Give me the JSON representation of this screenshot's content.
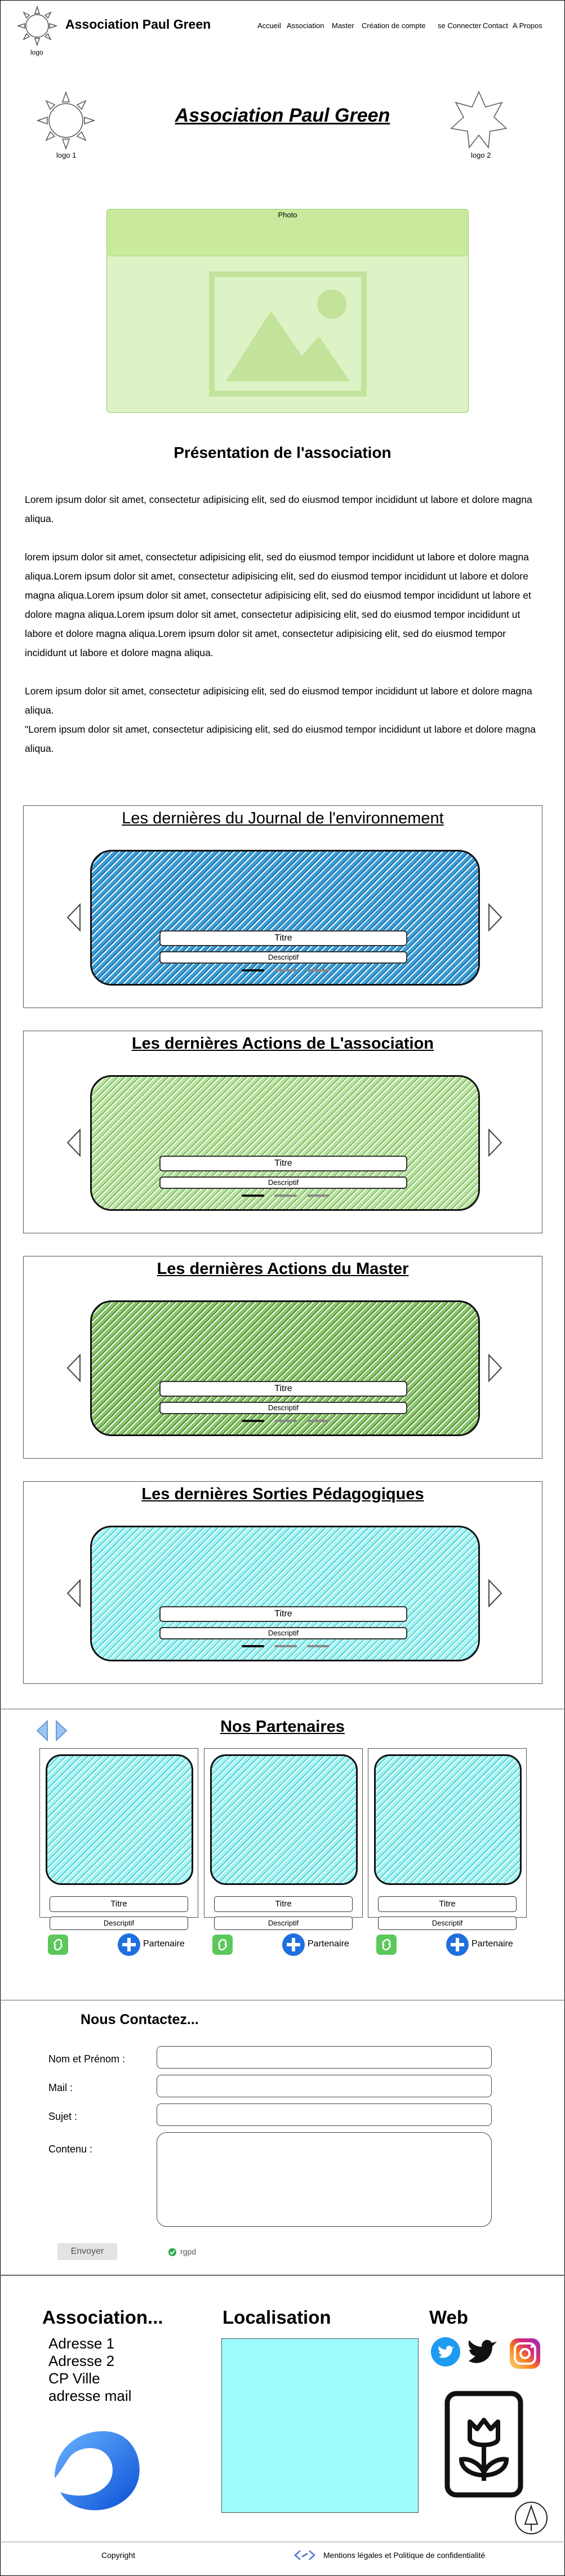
{
  "header": {
    "site_title": "Association Paul Green",
    "logo_label": "logo",
    "nav": [
      "Accueil",
      "Association",
      "Master",
      "Création de compte",
      "se Connecter",
      "Contact",
      "A Propos"
    ]
  },
  "hero": {
    "title": "Association Paul Green",
    "logo1_label": "logo 1",
    "logo2_label": "logo 2",
    "photo_label": "Photo"
  },
  "presentation": {
    "heading": "Présentation de l'association",
    "p1": "Lorem ipsum dolor sit amet, consectetur adipisicing elit, sed do eiusmod tempor incididunt ut labore et dolore magna aliqua.",
    "p2": "lorem ipsum dolor sit amet, consectetur adipisicing elit, sed do eiusmod tempor incididunt ut labore et dolore magna aliqua.Lorem ipsum dolor sit amet, consectetur adipisicing elit, sed do eiusmod tempor incididunt ut labore et dolore magna aliqua.Lorem ipsum dolor sit amet, consectetur adipisicing elit, sed do eiusmod tempor incididunt ut labore et dolore magna aliqua.Lorem ipsum dolor sit amet, consectetur adipisicing elit, sed do eiusmod tempor incididunt ut labore et dolore magna aliqua.Lorem ipsum dolor sit amet, consectetur adipisicing elit, sed do eiusmod tempor incididunt ut labore et dolore magna aliqua.",
    "p3": "Lorem ipsum dolor sit amet, consectetur adipisicing elit, sed do eiusmod tempor incididunt ut labore et dolore magna aliqua.",
    "p4": "\"Lorem ipsum dolor sit amet, consectetur adipisicing elit, sed do eiusmod tempor incididunt ut labore et dolore magna aliqua."
  },
  "carousels": [
    {
      "title": "Les dernières du Journal de l'environnement",
      "titre": "Titre",
      "descriptif": "Descriptif",
      "color": "#3a9fd8",
      "dark": "#1f6fa8"
    },
    {
      "title": "Les dernières Actions de L'association",
      "titre": "Titre",
      "descriptif": "Descriptif",
      "color": "#b9e2a0",
      "dark": "#7cbf5a"
    },
    {
      "title": "Les dernières Actions du Master",
      "titre": "Titre",
      "descriptif": "Descriptif",
      "color": "#8cc66a",
      "dark": "#4f8f34"
    },
    {
      "title": "Les dernières Sorties Pédagogiques",
      "titre": "Titre",
      "descriptif": "Descriptif",
      "color": "#a6f3f3",
      "dark": "#4fd4d4"
    }
  ],
  "partners": {
    "heading": "Nos Partenaires",
    "cards": [
      {
        "titre": "Titre",
        "descriptif": "Descriptif",
        "button": "Partenaire"
      },
      {
        "titre": "Titre",
        "descriptif": "Descriptif",
        "button": "Partenaire"
      },
      {
        "titre": "Titre",
        "descriptif": "Descriptif",
        "button": "Partenaire"
      }
    ]
  },
  "contact": {
    "heading": "Nous Contactez...",
    "name_label": "Nom et Prénom :",
    "mail_label": "Mail :",
    "subject_label": "Sujet :",
    "content_label": "Contenu :",
    "send_button": "Envoyer",
    "rgpd_label": "rgpd"
  },
  "footer": {
    "assoc_title": "Association...",
    "address": [
      "Adresse 1",
      "Adresse 2",
      "CP Ville",
      "adresse mail"
    ],
    "localisation_title": "Localisation",
    "web_title": "Web",
    "copyright": "Copyright",
    "legal": "Mentions légales et Politique de confidentialité"
  },
  "colors": {
    "photo_bg": "#ddf3c6",
    "photo_bar": "#c9ea9c",
    "map_bg": "#9cfbfb",
    "twitter": "#1d9bf0",
    "partner_btn": "#1e6fe0",
    "link_green": "#5cc85c"
  },
  "icons": [
    "sun-logo-icon",
    "star-logo-icon",
    "image-placeholder-icon",
    "chevron-left-icon",
    "chevron-right-icon",
    "link-icon",
    "plus-icon",
    "check-icon",
    "twitter-icon",
    "x-bird-icon",
    "instagram-icon",
    "flower-logo-icon",
    "sign-icon",
    "code-icon",
    "brand-logo-icon"
  ]
}
